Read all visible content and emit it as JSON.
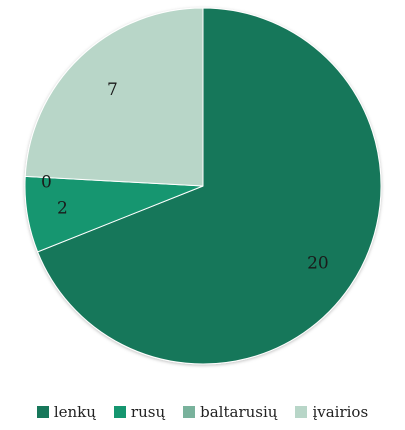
{
  "chart_data": {
    "type": "pie",
    "categories": [
      "lenkų",
      "rusų",
      "baltarusių",
      "įvairios"
    ],
    "values": [
      20,
      2,
      0,
      7
    ],
    "colors": [
      "#17775a",
      "#15966f",
      "#79b29c",
      "#b8d6c8"
    ],
    "legend_position": "bottom",
    "start": "top",
    "direction": "clockwise"
  }
}
